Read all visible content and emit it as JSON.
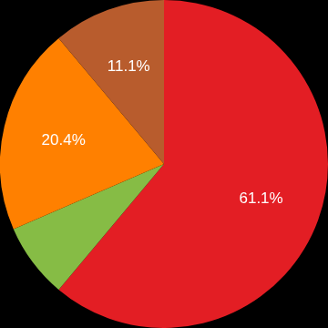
{
  "chart_data": {
    "type": "pie",
    "categories": [
      null,
      null,
      null,
      null
    ],
    "values": [
      61.1,
      7.4,
      20.4,
      11.1
    ],
    "value_labels": [
      "61.1%",
      null,
      "20.4%",
      "11.1%"
    ],
    "colors": [
      "#e31e24",
      "#86bc45",
      "#ff8000",
      "#b85c2d"
    ],
    "data_labels": true
  }
}
